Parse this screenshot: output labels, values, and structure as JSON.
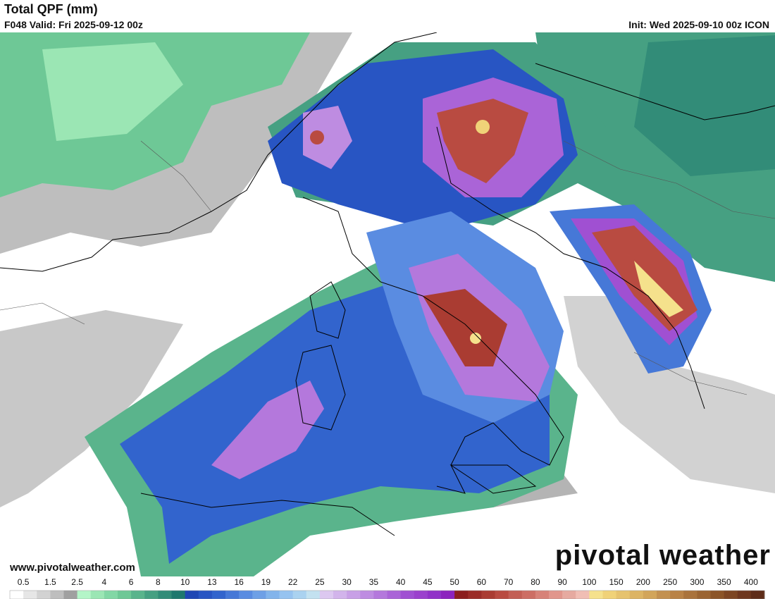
{
  "header": {
    "title": "Total QPF (mm)",
    "valid": "F048 Valid: Fri 2025-09-12 00z",
    "init": "Init: Wed 2025-09-10 00z ICON"
  },
  "map": {
    "website": "www.pivotalweather.com",
    "logo": "pivotal weather"
  },
  "colorbar": {
    "labels": [
      "0.5",
      "1.5",
      "2.5",
      "4",
      "6",
      "8",
      "10",
      "13",
      "16",
      "19",
      "22",
      "25",
      "30",
      "35",
      "40",
      "45",
      "50",
      "60",
      "70",
      "80",
      "90",
      "100",
      "150",
      "200",
      "250",
      "300",
      "350",
      "400"
    ],
    "colors": [
      "#ffffff",
      "#e6e6e6",
      "#d2d2d2",
      "#bebebe",
      "#a0a0a0",
      "#b4f5c8",
      "#9be6b4",
      "#82d7a5",
      "#6ec896",
      "#5ab48c",
      "#46a082",
      "#328c78",
      "#1e786e",
      "#1e46b4",
      "#2855c3",
      "#3264cd",
      "#4678d7",
      "#5a8ce1",
      "#6ea0e6",
      "#82b4eb",
      "#96c3f0",
      "#aad2f0",
      "#c3e1f0",
      "#dcc8f0",
      "#d2b4eb",
      "#c8a0e6",
      "#be8ce1",
      "#b478dc",
      "#aa64d7",
      "#a050d2",
      "#9b41cd",
      "#9132c8",
      "#8c23be",
      "#8c1e1e",
      "#9b2d28",
      "#aa3c32",
      "#b94b41",
      "#c35f55",
      "#cd6e64",
      "#d78278",
      "#e1968c",
      "#e6aaa0",
      "#f0beb4",
      "#f5e18c",
      "#f0d278",
      "#e6c36e",
      "#dcb464",
      "#d2a55a",
      "#c39150",
      "#b98246",
      "#aa733c",
      "#9b6432",
      "#8c5528",
      "#7d4623",
      "#6e371e",
      "#5f2d19"
    ]
  }
}
